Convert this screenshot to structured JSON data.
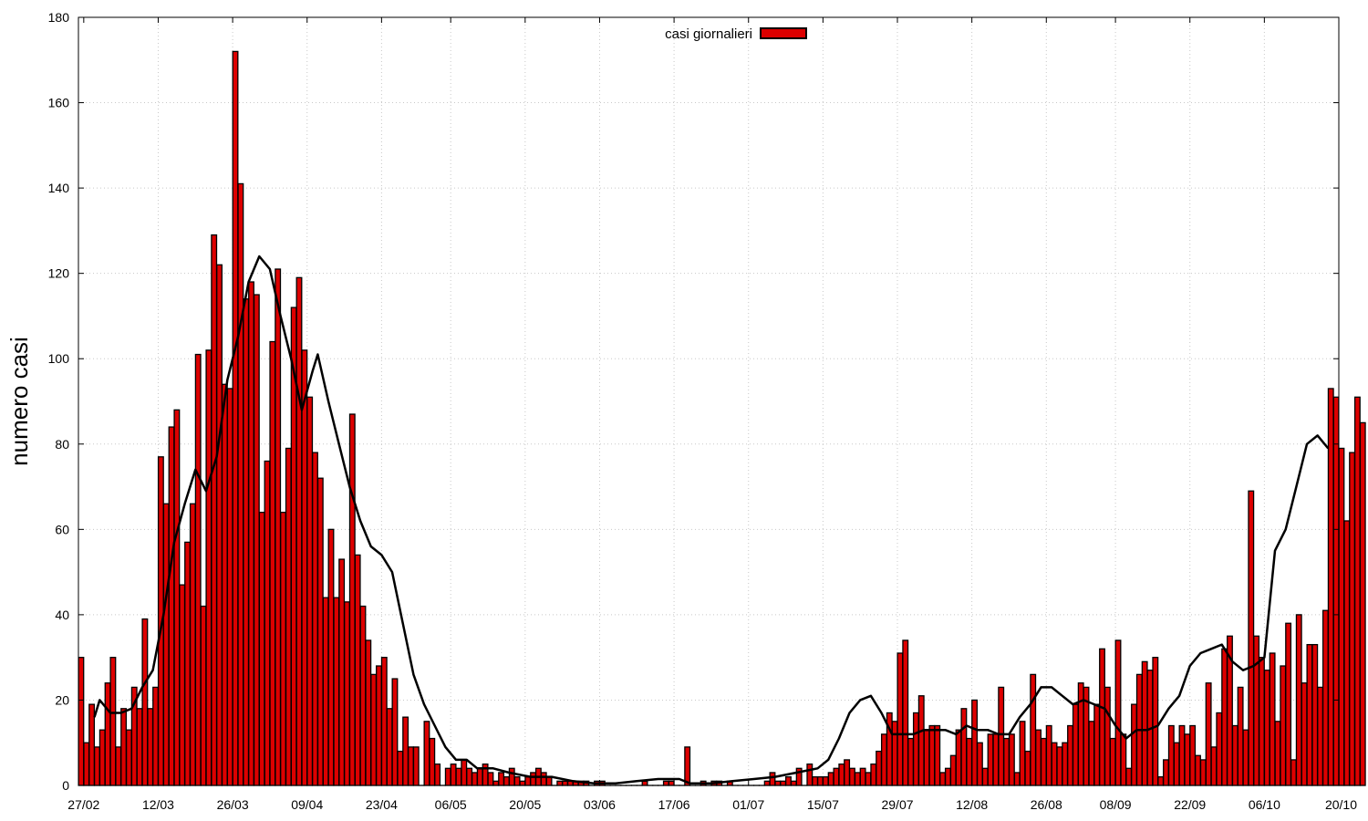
{
  "chart_data": {
    "type": "bar",
    "title": "",
    "xlabel": "",
    "ylabel": "numero casi",
    "ylim": [
      0,
      180
    ],
    "yticks": [
      0,
      20,
      40,
      60,
      80,
      100,
      120,
      140,
      160,
      180
    ],
    "xlim": [
      "2020-02-26",
      "2020-10-20"
    ],
    "xticks": [
      "27/02",
      "12/03",
      "26/03",
      "09/04",
      "23/04",
      "06/05",
      "20/05",
      "03/06",
      "17/06",
      "01/07",
      "15/07",
      "29/07",
      "12/08",
      "26/08",
      "08/09",
      "22/09",
      "06/10",
      "20/10"
    ],
    "xtick_dates": [
      "2020-02-27",
      "2020-03-12",
      "2020-03-26",
      "2020-04-09",
      "2020-04-23",
      "2020-05-06",
      "2020-05-20",
      "2020-06-03",
      "2020-06-17",
      "2020-07-01",
      "2020-07-15",
      "2020-07-29",
      "2020-08-12",
      "2020-08-26",
      "2020-09-08",
      "2020-09-22",
      "2020-10-06",
      "2020-10-20"
    ],
    "grid": true,
    "legend_position": "top-center",
    "colors": {
      "bar_fill": "#dd0000",
      "bar_stroke": "#000000",
      "trend_line": "#000000",
      "grid": "#c8c8c8"
    },
    "series": [
      {
        "name": "casi giornalieri",
        "kind": "bar",
        "start_date": "2020-02-26",
        "values": [
          30,
          10,
          19,
          9,
          13,
          24,
          30,
          9,
          18,
          13,
          23,
          18,
          39,
          18,
          23,
          77,
          66,
          84,
          88,
          47,
          57,
          66,
          101,
          42,
          102,
          129,
          122,
          94,
          93,
          172,
          141,
          114,
          118,
          115,
          64,
          76,
          104,
          121,
          64,
          79,
          112,
          119,
          102,
          91,
          78,
          72,
          44,
          60,
          44,
          53,
          43,
          87,
          54,
          42,
          34,
          26,
          28,
          30,
          18,
          25,
          8,
          16,
          9,
          9,
          0,
          15,
          11,
          5,
          0,
          4,
          5,
          4,
          6,
          4,
          3,
          4,
          5,
          3,
          1,
          3,
          2,
          4,
          2,
          1,
          2,
          3,
          4,
          3,
          2,
          0,
          1,
          1,
          1,
          1,
          1,
          1,
          0,
          1,
          1,
          0,
          0,
          0,
          0,
          0,
          0,
          0,
          1,
          0,
          0,
          0,
          1,
          1,
          0,
          0,
          9,
          0,
          0,
          1,
          0,
          1,
          1,
          0,
          1,
          0,
          0,
          0,
          0,
          0,
          0,
          1,
          3,
          1,
          1,
          2,
          1,
          4,
          0,
          5,
          2,
          2,
          2,
          3,
          4,
          5,
          6,
          4,
          3,
          4,
          3,
          5,
          8,
          12,
          17,
          15,
          31,
          34,
          11,
          17,
          21,
          13,
          14,
          14,
          3,
          4,
          7,
          13,
          18,
          11,
          20,
          10,
          4,
          12,
          12,
          23,
          11,
          12,
          3,
          15,
          8,
          26,
          13,
          11,
          14,
          10,
          9,
          10,
          14,
          19,
          24,
          23,
          15,
          19,
          32,
          23,
          11,
          34,
          12,
          4,
          19,
          26,
          29,
          27,
          30,
          2,
          6,
          14,
          10,
          14,
          12,
          14,
          7,
          6,
          24,
          9,
          17,
          32,
          35,
          14,
          23,
          13,
          69,
          35,
          30,
          27,
          31,
          15,
          28,
          38,
          6,
          40,
          24,
          33,
          33,
          23,
          41,
          93,
          91,
          79,
          62,
          78,
          91,
          85
        ]
      },
      {
        "name": "",
        "kind": "line",
        "points": [
          [
            "2020-02-29",
            16
          ],
          [
            "2020-03-01",
            20
          ],
          [
            "2020-03-03",
            17
          ],
          [
            "2020-03-05",
            17
          ],
          [
            "2020-03-07",
            18
          ],
          [
            "2020-03-09",
            23
          ],
          [
            "2020-03-11",
            27
          ],
          [
            "2020-03-13",
            40
          ],
          [
            "2020-03-15",
            57
          ],
          [
            "2020-03-17",
            66
          ],
          [
            "2020-03-19",
            74
          ],
          [
            "2020-03-21",
            69
          ],
          [
            "2020-03-23",
            77
          ],
          [
            "2020-03-25",
            95
          ],
          [
            "2020-03-27",
            105
          ],
          [
            "2020-03-29",
            118
          ],
          [
            "2020-03-31",
            124
          ],
          [
            "2020-04-02",
            121
          ],
          [
            "2020-04-04",
            110
          ],
          [
            "2020-04-06",
            100
          ],
          [
            "2020-04-08",
            88
          ],
          [
            "2020-04-10",
            97
          ],
          [
            "2020-04-11",
            101
          ],
          [
            "2020-04-13",
            90
          ],
          [
            "2020-04-15",
            80
          ],
          [
            "2020-04-17",
            70
          ],
          [
            "2020-04-19",
            62
          ],
          [
            "2020-04-21",
            56
          ],
          [
            "2020-04-23",
            54
          ],
          [
            "2020-04-25",
            50
          ],
          [
            "2020-04-27",
            38
          ],
          [
            "2020-04-29",
            26
          ],
          [
            "2020-05-01",
            19
          ],
          [
            "2020-05-03",
            14
          ],
          [
            "2020-05-05",
            9
          ],
          [
            "2020-05-07",
            6
          ],
          [
            "2020-05-09",
            6
          ],
          [
            "2020-05-11",
            4
          ],
          [
            "2020-05-14",
            4
          ],
          [
            "2020-05-17",
            3
          ],
          [
            "2020-05-21",
            2
          ],
          [
            "2020-05-25",
            2
          ],
          [
            "2020-05-29",
            1
          ],
          [
            "2020-06-02",
            0.5
          ],
          [
            "2020-06-06",
            0.5
          ],
          [
            "2020-06-10",
            1
          ],
          [
            "2020-06-14",
            1.5
          ],
          [
            "2020-06-18",
            1.5
          ],
          [
            "2020-06-20",
            0.5
          ],
          [
            "2020-06-24",
            0.5
          ],
          [
            "2020-06-28",
            1
          ],
          [
            "2020-07-02",
            1.5
          ],
          [
            "2020-07-06",
            2
          ],
          [
            "2020-07-10",
            3
          ],
          [
            "2020-07-14",
            4
          ],
          [
            "2020-07-16",
            6
          ],
          [
            "2020-07-18",
            11
          ],
          [
            "2020-07-20",
            17
          ],
          [
            "2020-07-22",
            20
          ],
          [
            "2020-07-24",
            21
          ],
          [
            "2020-07-26",
            17
          ],
          [
            "2020-07-28",
            12
          ],
          [
            "2020-07-30",
            12
          ],
          [
            "2020-08-01",
            12
          ],
          [
            "2020-08-03",
            13
          ],
          [
            "2020-08-05",
            13
          ],
          [
            "2020-08-07",
            13
          ],
          [
            "2020-08-09",
            12
          ],
          [
            "2020-08-11",
            14
          ],
          [
            "2020-08-13",
            13
          ],
          [
            "2020-08-15",
            13
          ],
          [
            "2020-08-17",
            12
          ],
          [
            "2020-08-19",
            12
          ],
          [
            "2020-08-21",
            16
          ],
          [
            "2020-08-23",
            19
          ],
          [
            "2020-08-25",
            23
          ],
          [
            "2020-08-27",
            23
          ],
          [
            "2020-08-29",
            21
          ],
          [
            "2020-08-31",
            19
          ],
          [
            "2020-09-02",
            20
          ],
          [
            "2020-09-04",
            19
          ],
          [
            "2020-09-06",
            18
          ],
          [
            "2020-09-08",
            14
          ],
          [
            "2020-09-10",
            11
          ],
          [
            "2020-09-12",
            13
          ],
          [
            "2020-09-14",
            13
          ],
          [
            "2020-09-16",
            14
          ],
          [
            "2020-09-18",
            18
          ],
          [
            "2020-09-20",
            21
          ],
          [
            "2020-09-22",
            28
          ],
          [
            "2020-09-24",
            31
          ],
          [
            "2020-09-26",
            32
          ],
          [
            "2020-09-28",
            33
          ],
          [
            "2020-09-30",
            29
          ],
          [
            "2020-10-02",
            27
          ],
          [
            "2020-10-04",
            28
          ],
          [
            "2020-10-06",
            30
          ],
          [
            "2020-10-08",
            55
          ],
          [
            "2020-10-10",
            60
          ],
          [
            "2020-10-12",
            70
          ],
          [
            "2020-10-14",
            80
          ],
          [
            "2020-10-16",
            82
          ],
          [
            "2020-10-18",
            79
          ]
        ]
      }
    ]
  }
}
